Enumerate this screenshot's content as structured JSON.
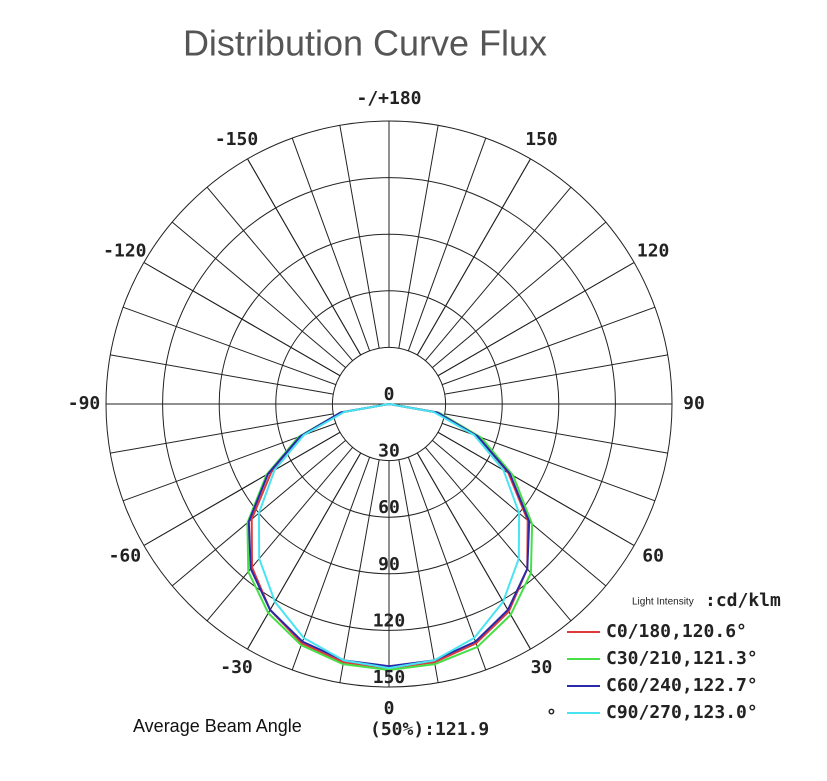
{
  "chart_data": {
    "type": "polar",
    "title": "Distribution Curve Flux",
    "unit_prefix": "Light Intensity",
    "unit": ":cd/klm",
    "beam_label": "Average Beam Angle",
    "beam_value": "(50%):121.9",
    "beam_degree": "°",
    "theta": [
      -90,
      -80,
      -70,
      -60,
      -50,
      -40,
      -30,
      -20,
      -10,
      0,
      10,
      20,
      30,
      40,
      50,
      60,
      70,
      80,
      90
    ],
    "rlim": [
      0,
      150
    ],
    "rticks": [
      0,
      30,
      60,
      90,
      120,
      150
    ],
    "thetaticks": [
      {
        "value": 180,
        "label": "-/+180"
      },
      150,
      120,
      90,
      60,
      30,
      0,
      -30,
      -60,
      -90,
      -120,
      -150
    ],
    "series": [
      {
        "name": "C0/180,120.6°",
        "color": "#e03a3a",
        "values": [
          0,
          25,
          49,
          72,
          95,
          113,
          126,
          135,
          139,
          140,
          139,
          135,
          127,
          114,
          96,
          73,
          50,
          26,
          0
        ]
      },
      {
        "name": "C30/210,121.3°",
        "color": "#46e046",
        "values": [
          0,
          26,
          51,
          75,
          98,
          116,
          128,
          136,
          140,
          141,
          140,
          137,
          129,
          117,
          99,
          76,
          52,
          27,
          0
        ]
      },
      {
        "name": "C60/240,122.7°",
        "color": "#2a2aa8",
        "values": [
          0,
          26,
          50,
          74,
          97,
          114,
          126,
          134,
          138,
          139,
          138,
          134,
          126,
          114,
          97,
          74,
          50,
          26,
          0
        ]
      },
      {
        "name": "C90/270,123.0°",
        "color": "#48e4f2",
        "values": [
          0,
          24,
          48,
          70,
          90,
          107,
          121,
          132,
          138,
          140,
          138,
          132,
          121,
          107,
          90,
          70,
          48,
          24,
          0
        ]
      }
    ]
  }
}
